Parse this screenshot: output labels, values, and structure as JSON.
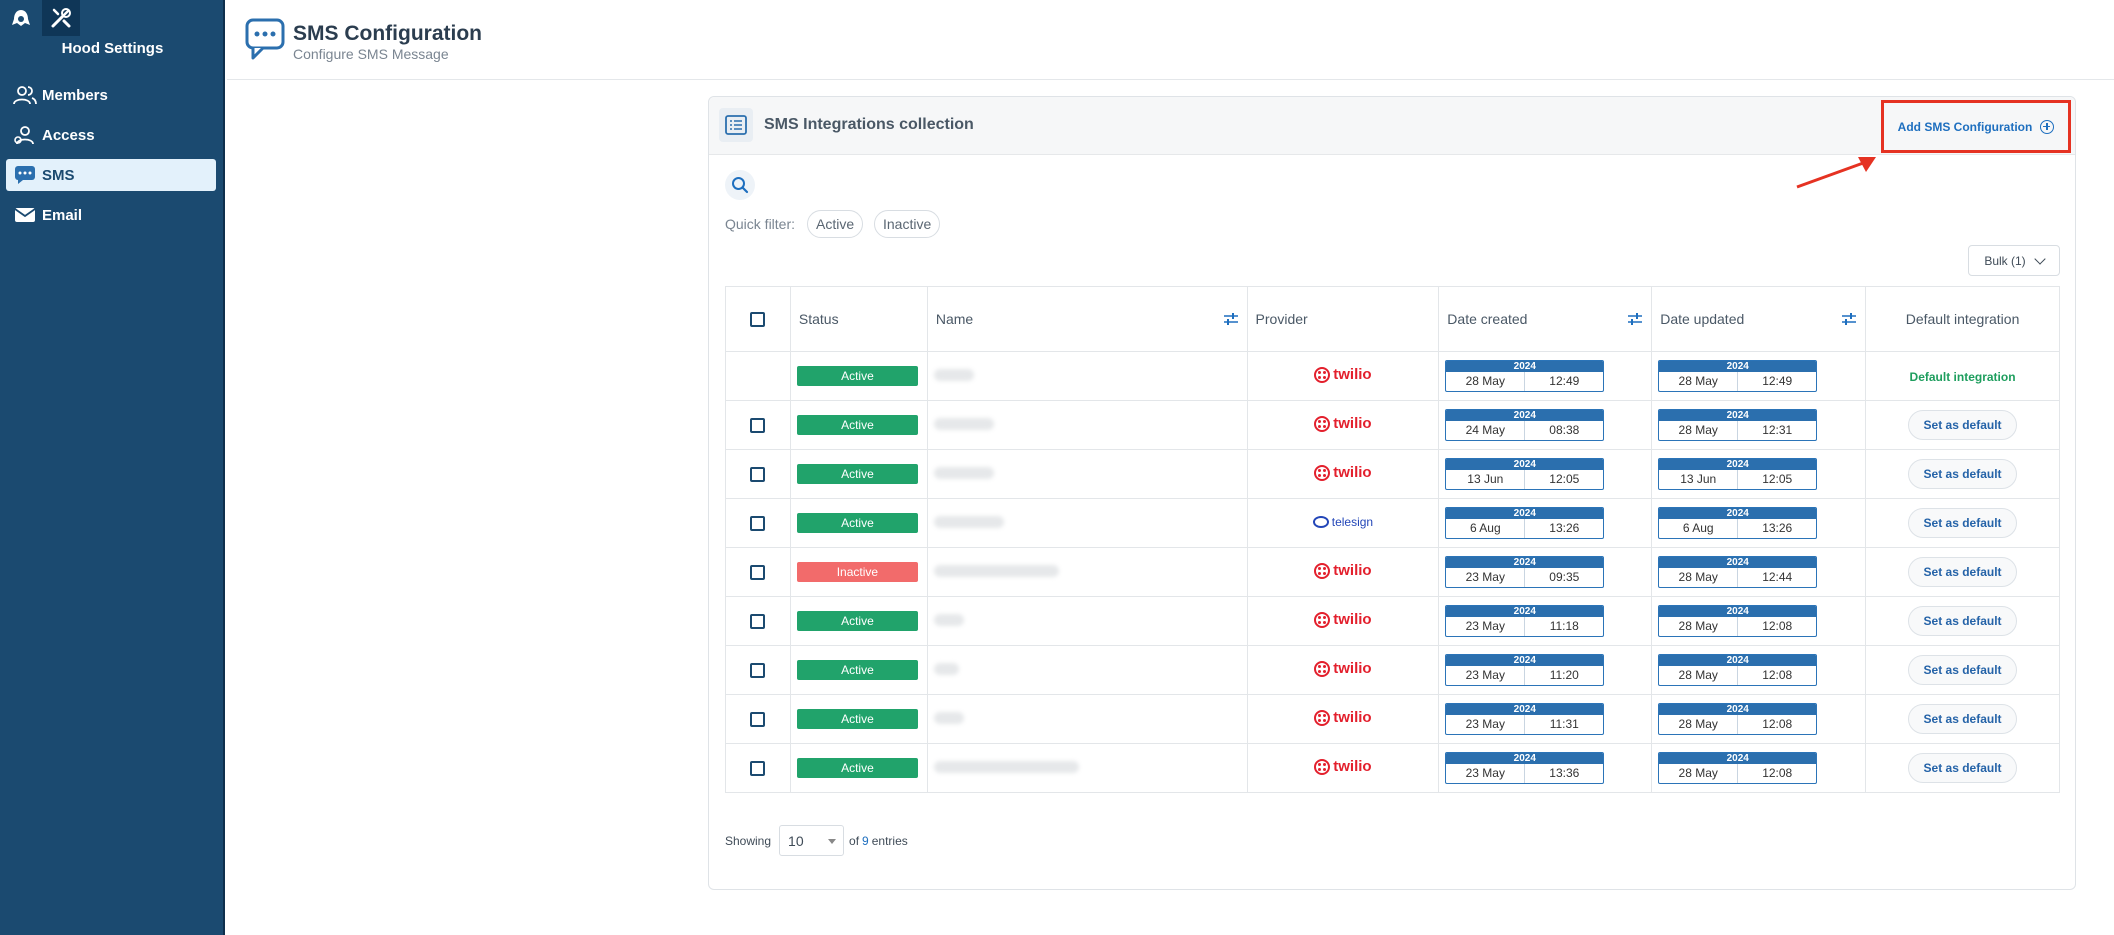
{
  "sidebar": {
    "title": "Hood Settings",
    "items": [
      {
        "label": "Members",
        "icon": "members-icon"
      },
      {
        "label": "Access",
        "icon": "access-icon"
      },
      {
        "label": "SMS",
        "icon": "sms-icon",
        "active": true
      },
      {
        "label": "Email",
        "icon": "email-icon"
      }
    ]
  },
  "header": {
    "title": "SMS Configuration",
    "subtitle": "Configure SMS Message"
  },
  "panel": {
    "title": "SMS Integrations collection",
    "add_label": "Add SMS Configuration",
    "quick_filter_label": "Quick filter:",
    "filters": [
      "Active",
      "Inactive"
    ],
    "bulk_label": "Bulk (1)",
    "columns": [
      "Status",
      "Name",
      "Provider",
      "Date created",
      "Date updated",
      "Default integration"
    ],
    "rows": [
      {
        "status": "Active",
        "name_width": 40,
        "provider": "twilio",
        "created": {
          "year": "2024",
          "date": "28 May",
          "time": "12:49"
        },
        "updated": {
          "year": "2024",
          "date": "28 May",
          "time": "12:49"
        },
        "default": "Default integration",
        "is_default": true
      },
      {
        "status": "Active",
        "name_width": 60,
        "provider": "twilio",
        "created": {
          "year": "2024",
          "date": "24 May",
          "time": "08:38"
        },
        "updated": {
          "year": "2024",
          "date": "28 May",
          "time": "12:31"
        },
        "default": "Set as default"
      },
      {
        "status": "Active",
        "name_width": 60,
        "provider": "twilio",
        "created": {
          "year": "2024",
          "date": "13 Jun",
          "time": "12:05"
        },
        "updated": {
          "year": "2024",
          "date": "13 Jun",
          "time": "12:05"
        },
        "default": "Set as default"
      },
      {
        "status": "Active",
        "name_width": 70,
        "provider": "telesign",
        "created": {
          "year": "2024",
          "date": "6 Aug",
          "time": "13:26"
        },
        "updated": {
          "year": "2024",
          "date": "6 Aug",
          "time": "13:26"
        },
        "default": "Set as default"
      },
      {
        "status": "Inactive",
        "name_width": 125,
        "provider": "twilio",
        "created": {
          "year": "2024",
          "date": "23 May",
          "time": "09:35"
        },
        "updated": {
          "year": "2024",
          "date": "28 May",
          "time": "12:44"
        },
        "default": "Set as default"
      },
      {
        "status": "Active",
        "name_width": 30,
        "provider": "twilio",
        "created": {
          "year": "2024",
          "date": "23 May",
          "time": "11:18"
        },
        "updated": {
          "year": "2024",
          "date": "28 May",
          "time": "12:08"
        },
        "default": "Set as default"
      },
      {
        "status": "Active",
        "name_width": 25,
        "provider": "twilio",
        "created": {
          "year": "2024",
          "date": "23 May",
          "time": "11:20"
        },
        "updated": {
          "year": "2024",
          "date": "28 May",
          "time": "12:08"
        },
        "default": "Set as default"
      },
      {
        "status": "Active",
        "name_width": 30,
        "provider": "twilio",
        "created": {
          "year": "2024",
          "date": "23 May",
          "time": "11:31"
        },
        "updated": {
          "year": "2024",
          "date": "28 May",
          "time": "12:08"
        },
        "default": "Set as default"
      },
      {
        "status": "Active",
        "name_width": 145,
        "provider": "twilio",
        "created": {
          "year": "2024",
          "date": "23 May",
          "time": "13:36"
        },
        "updated": {
          "year": "2024",
          "date": "28 May",
          "time": "12:08"
        },
        "default": "Set as default"
      }
    ],
    "footer": {
      "showing_label": "Showing",
      "page_size": "10",
      "of_label": "of",
      "total": "9",
      "entries_label": "entries"
    }
  },
  "colors": {
    "sidebar": "#1b4a70",
    "active": "#21a36b",
    "inactive": "#f26b6b",
    "twilio": "#e3202d",
    "highlight": "#e53222"
  }
}
